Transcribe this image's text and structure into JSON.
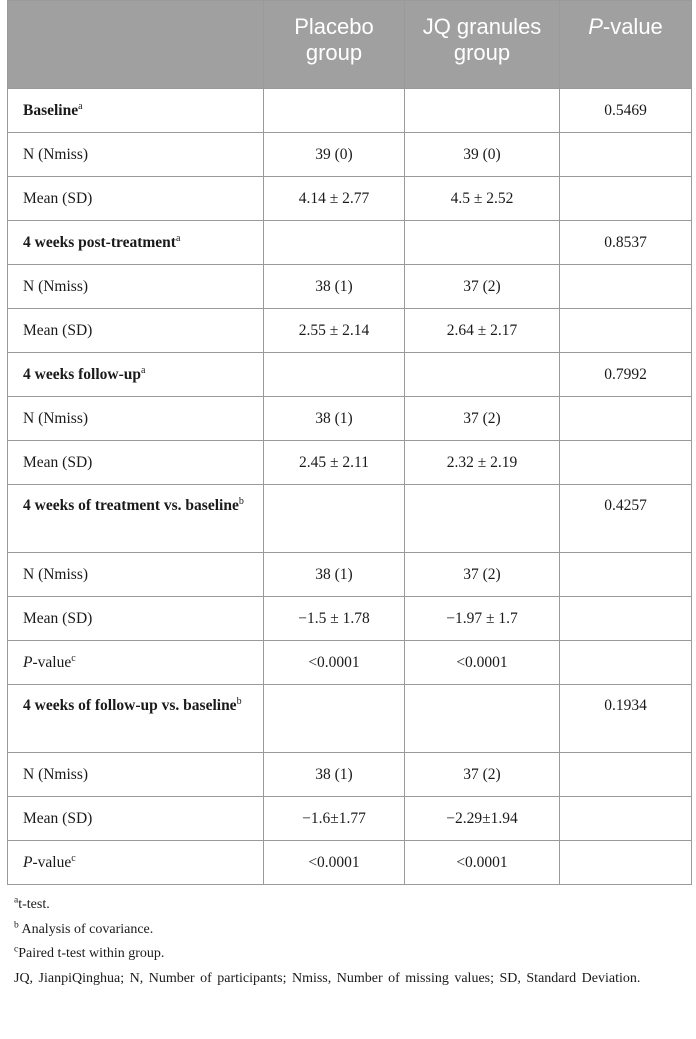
{
  "header": {
    "col1": "",
    "col2": "Placebo group",
    "col3": "JQ granules group",
    "col4_italic": "P",
    "col4_rest": "-value"
  },
  "rows": [
    {
      "kind": "section",
      "label": "Baseline",
      "sup": "a",
      "placebo": "",
      "jq": "",
      "p": "0.5469"
    },
    {
      "kind": "data",
      "label": "N (Nmiss)",
      "placebo": "39 (0)",
      "jq": "39 (0)",
      "p": ""
    },
    {
      "kind": "data",
      "label": "Mean (SD)",
      "placebo": "4.14 ± 2.77",
      "jq": "4.5 ± 2.52",
      "p": ""
    },
    {
      "kind": "section",
      "label": "4 weeks post-treatment",
      "sup": "a",
      "placebo": "",
      "jq": "",
      "p": "0.8537"
    },
    {
      "kind": "data",
      "label": "N (Nmiss)",
      "placebo": "38 (1)",
      "jq": "37 (2)",
      "p": ""
    },
    {
      "kind": "data",
      "label": "Mean (SD)",
      "placebo": "2.55 ± 2.14",
      "jq": "2.64 ± 2.17",
      "p": ""
    },
    {
      "kind": "section",
      "label": "4 weeks follow-up",
      "sup": "a",
      "placebo": "",
      "jq": "",
      "p": "0.7992"
    },
    {
      "kind": "data",
      "label": "N (Nmiss)",
      "placebo": "38 (1)",
      "jq": "37 (2)",
      "p": ""
    },
    {
      "kind": "data",
      "label": "Mean (SD)",
      "placebo": "2.45 ± 2.11",
      "jq": "2.32 ± 2.19",
      "p": ""
    },
    {
      "kind": "section-tall",
      "label": "4 weeks of treatment vs. baseline",
      "sup": "b",
      "placebo": "",
      "jq": "",
      "p": "0.4257"
    },
    {
      "kind": "data",
      "label": "N (Nmiss)",
      "placebo": "38 (1)",
      "jq": "37 (2)",
      "p": ""
    },
    {
      "kind": "data",
      "label": "Mean (SD)",
      "placebo": "−1.5 ± 1.78",
      "jq": "−1.97 ± 1.7",
      "p": ""
    },
    {
      "kind": "pvalue",
      "label_italic": "P",
      "label_rest": "-value",
      "sup": "c",
      "placebo": "<0.0001",
      "jq": "<0.0001",
      "p": ""
    },
    {
      "kind": "section-tall",
      "label": "4 weeks of follow-up vs. baseline",
      "sup": "b",
      "placebo": "",
      "jq": "",
      "p": "0.1934"
    },
    {
      "kind": "data",
      "label": "N (Nmiss)",
      "placebo": "38 (1)",
      "jq": "37 (2)",
      "p": ""
    },
    {
      "kind": "data",
      "label": "Mean (SD)",
      "placebo": "−1.6±1.77",
      "jq": "−2.29±1.94",
      "p": ""
    },
    {
      "kind": "pvalue",
      "label_italic": "P",
      "label_rest": "-value",
      "sup": "c",
      "placebo": "<0.0001",
      "jq": "<0.0001",
      "p": ""
    }
  ],
  "notes": {
    "a_mark": "a",
    "a_text": "t-test.",
    "b_mark": "b",
    "b_text": "Analysis of covariance.",
    "c_mark": "c",
    "c_text": "Paired t-test within group.",
    "abbreviations": "JQ, JianpiQinghua; N, Number of participants; Nmiss, Number of missing values; SD, Standard Deviation."
  }
}
